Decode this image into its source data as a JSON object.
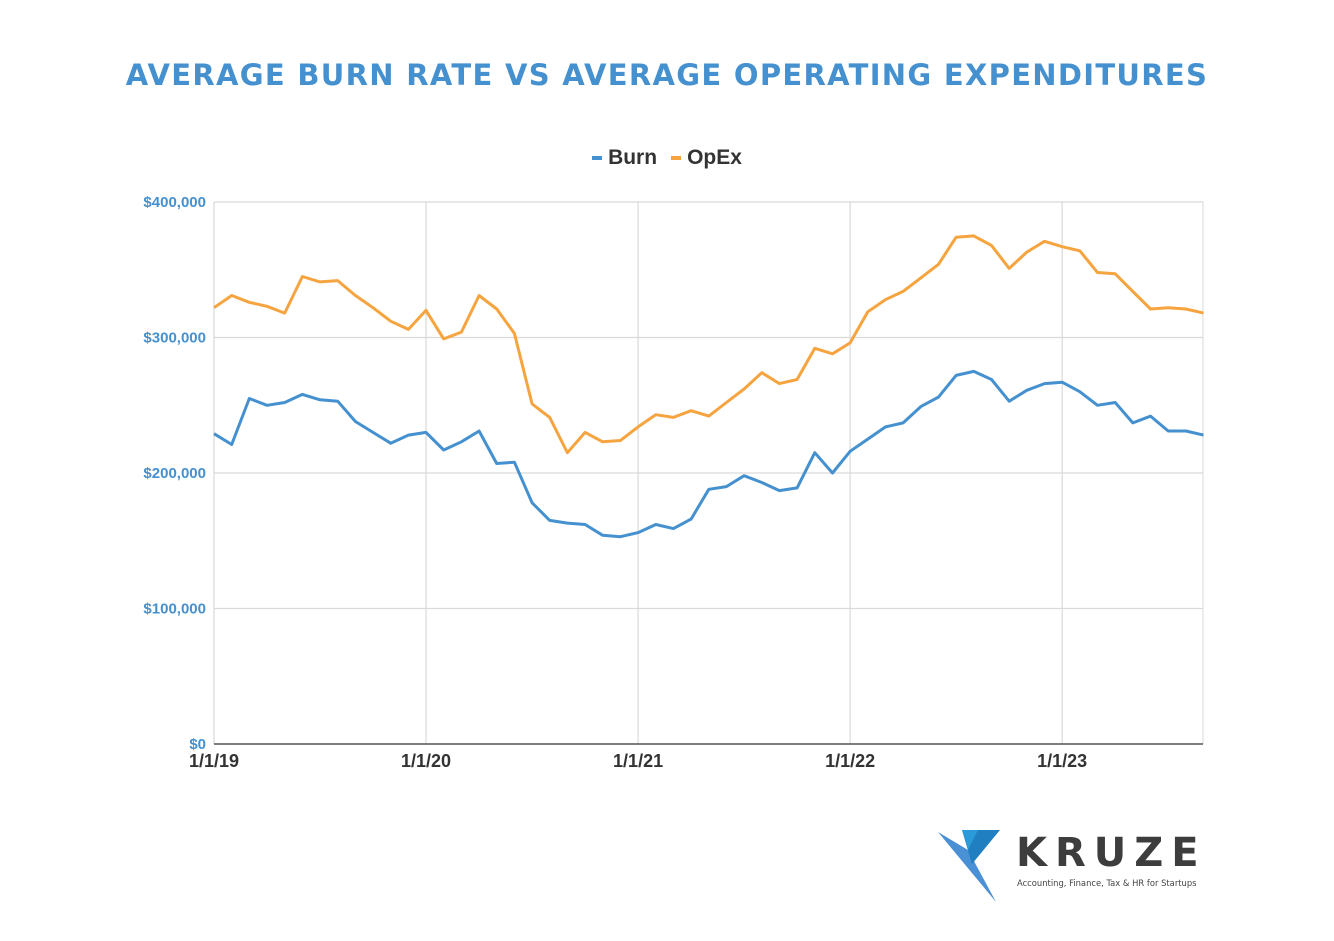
{
  "colors": {
    "title": "#4590cf",
    "burn": "#4590cf",
    "opex": "#f6a43f",
    "grid": "#d9d9d9",
    "axis": "#555555"
  },
  "chart_data": {
    "type": "line",
    "title": "AVERAGE BURN RATE VS AVERAGE OPERATING EXPENDITURES",
    "xlabel": "",
    "ylabel": "",
    "ylim": [
      0,
      400000
    ],
    "yticks": [
      0,
      100000,
      200000,
      300000,
      400000
    ],
    "ytick_labels": [
      "$0",
      "$100,000",
      "$200,000",
      "$300,000",
      "$400,000"
    ],
    "xtick_labels": [
      "1/1/19",
      "1/1/20",
      "1/1/21",
      "1/1/22",
      "1/1/23"
    ],
    "xtick_index": [
      0,
      12,
      24,
      36,
      48
    ],
    "x_start": "1/1/19",
    "x_interval": "monthly",
    "grid": true,
    "legend_position": "top",
    "series": [
      {
        "name": "Burn",
        "color": "#4590cf",
        "values": [
          229000,
          221000,
          255000,
          250000,
          252000,
          258000,
          254000,
          253000,
          238000,
          230000,
          222000,
          228000,
          230000,
          217000,
          223000,
          231000,
          207000,
          208000,
          178000,
          165000,
          163000,
          162000,
          154000,
          153000,
          156000,
          162000,
          159000,
          166000,
          188000,
          190000,
          198000,
          193000,
          187000,
          189000,
          215000,
          200000,
          216000,
          225000,
          234000,
          237000,
          249000,
          256000,
          272000,
          275000,
          269000,
          253000,
          261000,
          266000,
          267000,
          260000,
          250000,
          252000,
          237000,
          242000,
          231000,
          231000,
          228000
        ]
      },
      {
        "name": "OpEx",
        "color": "#f6a43f",
        "values": [
          322000,
          331000,
          326000,
          323000,
          318000,
          345000,
          341000,
          342000,
          331000,
          322000,
          312000,
          306000,
          320000,
          299000,
          304000,
          331000,
          321000,
          303000,
          251000,
          241000,
          215000,
          230000,
          223000,
          224000,
          234000,
          243000,
          241000,
          246000,
          242000,
          252000,
          262000,
          274000,
          266000,
          269000,
          292000,
          288000,
          296000,
          319000,
          328000,
          334000,
          344000,
          354000,
          374000,
          375000,
          368000,
          351000,
          363000,
          371000,
          367000,
          364000,
          348000,
          347000,
          334000,
          321000,
          322000,
          321000,
          318000
        ]
      }
    ]
  },
  "logo": {
    "name": "KRUZE",
    "tagline": "Accounting, Finance, Tax & HR for Startups"
  }
}
